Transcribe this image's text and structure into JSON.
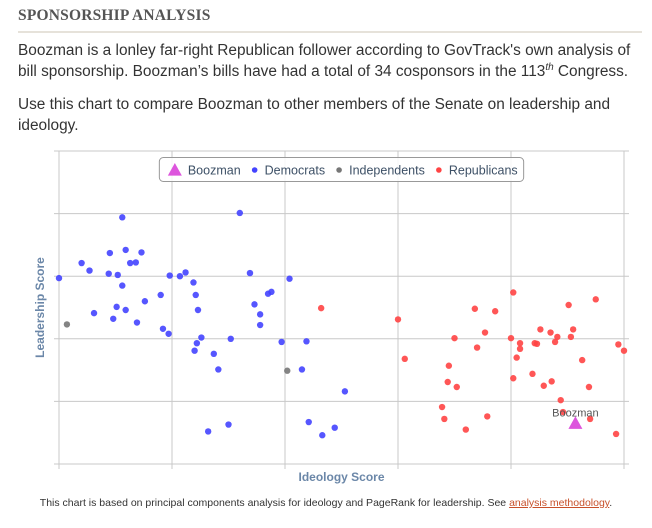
{
  "section": {
    "title": "SPONSORSHIP ANALYSIS",
    "paragraph1_a": "Boozman is a lonley far-right Republican follower according to GovTrack's own analysis of bill sponsorship. Boozman’s bills have had a total of 34 cosponsors in the 113",
    "paragraph1_sup": "th",
    "paragraph1_b": " Congress.",
    "paragraph2": "Use this chart to compare Boozman to other members of the Senate on leadership and ideology."
  },
  "footnote": {
    "text": "This chart is based on principal components analysis for ideology and PageRank for leadership. See ",
    "link": "analysis methodology",
    "end": "."
  },
  "chart_data": {
    "type": "scatter",
    "title": "",
    "xlabel": "Ideology Score",
    "ylabel": "Leadership Score",
    "xlim": [
      0,
      5
    ],
    "ylim": [
      0,
      5
    ],
    "grid": true,
    "tick_labels_shown": false,
    "legend_placement": "top-center",
    "series": [
      {
        "name": "Boozman",
        "marker": "triangle",
        "color": "#dd55dd",
        "point_label": "Boozman",
        "points": [
          [
            4.57,
            0.65
          ]
        ]
      },
      {
        "name": "Democrats",
        "marker": "circle",
        "color": "#4444ff",
        "points": [
          [
            0.0,
            2.97
          ],
          [
            0.2,
            3.21
          ],
          [
            0.27,
            3.09
          ],
          [
            0.56,
            3.94
          ],
          [
            0.45,
            3.37
          ],
          [
            0.59,
            3.42
          ],
          [
            0.73,
            3.38
          ],
          [
            0.63,
            3.21
          ],
          [
            0.68,
            3.22
          ],
          [
            0.44,
            3.04
          ],
          [
            0.52,
            3.02
          ],
          [
            0.56,
            2.85
          ],
          [
            0.31,
            2.41
          ],
          [
            0.51,
            2.51
          ],
          [
            0.59,
            2.46
          ],
          [
            0.48,
            2.32
          ],
          [
            0.69,
            2.26
          ],
          [
            0.76,
            2.6
          ],
          [
            0.9,
            2.7
          ],
          [
            0.92,
            2.16
          ],
          [
            0.97,
            2.08
          ],
          [
            0.98,
            3.01
          ],
          [
            1.07,
            3.0
          ],
          [
            1.12,
            3.06
          ],
          [
            1.19,
            2.9
          ],
          [
            1.21,
            2.7
          ],
          [
            1.23,
            2.46
          ],
          [
            1.26,
            2.02
          ],
          [
            1.22,
            1.93
          ],
          [
            1.2,
            1.81
          ],
          [
            1.37,
            1.76
          ],
          [
            1.41,
            1.51
          ],
          [
            1.52,
            2.0
          ],
          [
            1.6,
            4.01
          ],
          [
            1.69,
            3.05
          ],
          [
            1.73,
            2.55
          ],
          [
            1.78,
            2.39
          ],
          [
            1.78,
            2.22
          ],
          [
            1.85,
            2.72
          ],
          [
            1.88,
            2.75
          ],
          [
            2.04,
            2.96
          ],
          [
            1.97,
            1.95
          ],
          [
            2.19,
            1.96
          ],
          [
            2.15,
            1.51
          ],
          [
            2.53,
            1.16
          ],
          [
            2.21,
            0.67
          ],
          [
            2.33,
            0.46
          ],
          [
            2.44,
            0.58
          ],
          [
            1.32,
            0.52
          ],
          [
            1.5,
            0.63
          ]
        ]
      },
      {
        "name": "Independents",
        "marker": "circle",
        "color": "#777777",
        "points": [
          [
            0.07,
            2.23
          ],
          [
            2.02,
            1.49
          ]
        ]
      },
      {
        "name": "Republicans",
        "marker": "circle",
        "color": "#ff4444",
        "points": [
          [
            2.32,
            2.49
          ],
          [
            3.0,
            2.31
          ],
          [
            3.06,
            1.68
          ],
          [
            3.5,
            2.01
          ],
          [
            3.45,
            1.57
          ],
          [
            3.44,
            1.31
          ],
          [
            3.52,
            1.23
          ],
          [
            3.39,
            0.91
          ],
          [
            3.41,
            0.72
          ],
          [
            3.6,
            0.55
          ],
          [
            3.79,
            0.76
          ],
          [
            3.68,
            2.48
          ],
          [
            3.86,
            2.44
          ],
          [
            3.77,
            2.1
          ],
          [
            3.7,
            1.86
          ],
          [
            4.02,
            2.74
          ],
          [
            4.0,
            2.01
          ],
          [
            4.08,
            1.93
          ],
          [
            4.08,
            1.84
          ],
          [
            4.05,
            1.7
          ],
          [
            4.02,
            1.37
          ],
          [
            4.19,
            1.44
          ],
          [
            4.21,
            1.93
          ],
          [
            4.23,
            1.92
          ],
          [
            4.26,
            2.15
          ],
          [
            4.35,
            2.1
          ],
          [
            4.41,
            2.03
          ],
          [
            4.39,
            1.95
          ],
          [
            4.29,
            1.25
          ],
          [
            4.36,
            1.32
          ],
          [
            4.51,
            2.54
          ],
          [
            4.55,
            2.15
          ],
          [
            4.53,
            2.03
          ],
          [
            4.63,
            1.66
          ],
          [
            4.75,
            2.63
          ],
          [
            4.69,
            1.23
          ],
          [
            4.44,
            1.02
          ],
          [
            4.46,
            0.83
          ],
          [
            4.7,
            0.72
          ],
          [
            4.95,
            1.91
          ],
          [
            5.0,
            1.81
          ],
          [
            4.93,
            0.48
          ]
        ]
      }
    ]
  }
}
